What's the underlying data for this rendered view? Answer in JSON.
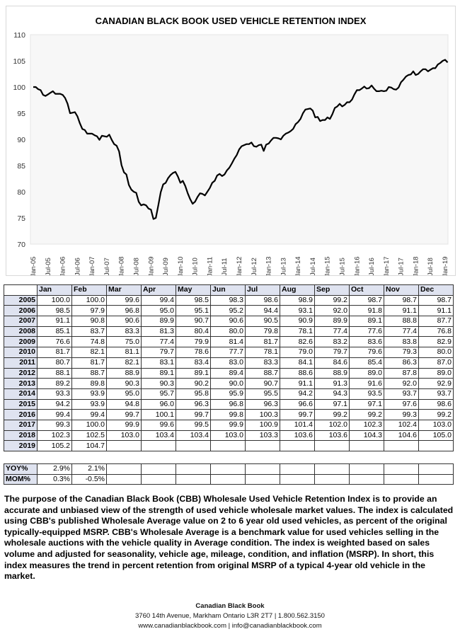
{
  "chart_data": {
    "type": "line",
    "title": "CANADIAN BLACK BOOK USED VEHICLE RETENTION INDEX",
    "xlabel": "",
    "ylabel": "",
    "ylim": [
      70,
      110
    ],
    "yticks": [
      70,
      75,
      80,
      85,
      90,
      95,
      100,
      105,
      110
    ],
    "xticks": [
      "Jan-05",
      "Jul-05",
      "Jan-06",
      "Jul-06",
      "Jan-07",
      "Jul-07",
      "Jan-08",
      "Jul-08",
      "Jan-09",
      "Jul-09",
      "Jan-10",
      "Jul-10",
      "Jan-11",
      "Jul-11",
      "Jan-12",
      "Jul-12",
      "Jan-13",
      "Jul-13",
      "Jan-14",
      "Jul-14",
      "Jan-15",
      "Jul-15",
      "Jan-16",
      "Jul-16",
      "Jan-17",
      "Jul-17",
      "Jan-18",
      "Jul-18",
      "Jan-19"
    ],
    "grid": false,
    "series": [
      {
        "name": "Used Vehicle Retention Index",
        "x_start": "Jan-05",
        "x_step": "month",
        "values": [
          100.0,
          100.0,
          99.6,
          99.4,
          98.5,
          98.3,
          98.6,
          98.9,
          99.2,
          98.7,
          98.7,
          98.7,
          98.5,
          97.9,
          96.8,
          95.0,
          95.1,
          95.2,
          94.4,
          93.1,
          92.0,
          91.8,
          91.1,
          91.1,
          91.1,
          90.8,
          90.6,
          89.9,
          90.7,
          90.6,
          90.5,
          90.9,
          89.9,
          89.1,
          88.8,
          87.7,
          85.1,
          83.7,
          83.3,
          81.3,
          80.4,
          80.0,
          79.8,
          78.1,
          77.4,
          77.6,
          77.4,
          76.8,
          76.6,
          74.8,
          75.0,
          77.4,
          79.9,
          81.4,
          81.7,
          82.6,
          83.2,
          83.6,
          83.8,
          82.9,
          81.7,
          82.1,
          81.1,
          79.7,
          78.6,
          77.7,
          78.1,
          79.0,
          79.7,
          79.6,
          79.3,
          80.0,
          80.7,
          81.7,
          82.1,
          83.1,
          83.4,
          83.0,
          83.3,
          84.1,
          84.6,
          85.4,
          86.3,
          87.0,
          88.1,
          88.7,
          88.9,
          89.1,
          89.1,
          89.4,
          88.7,
          88.6,
          88.9,
          89.0,
          87.8,
          89.0,
          89.2,
          89.8,
          90.3,
          90.3,
          90.2,
          90.0,
          90.7,
          91.1,
          91.3,
          91.6,
          92.0,
          92.9,
          93.3,
          93.9,
          95.0,
          95.7,
          95.8,
          95.9,
          95.5,
          94.2,
          94.3,
          93.5,
          93.7,
          93.7,
          94.2,
          93.9,
          94.8,
          96.0,
          96.3,
          96.8,
          96.3,
          96.6,
          97.1,
          97.1,
          97.6,
          98.6,
          99.4,
          99.4,
          99.7,
          100.1,
          99.7,
          99.8,
          100.3,
          99.7,
          99.2,
          99.2,
          99.3,
          99.2,
          99.3,
          100.0,
          99.9,
          99.6,
          99.5,
          99.9,
          100.9,
          101.4,
          102.0,
          102.3,
          102.4,
          103.0,
          102.3,
          102.5,
          103.0,
          103.4,
          103.4,
          103.0,
          103.3,
          103.6,
          103.6,
          104.3,
          104.6,
          105.0,
          105.2,
          104.7
        ]
      }
    ]
  },
  "table": {
    "months": [
      "Jan",
      "Feb",
      "Mar",
      "Apr",
      "May",
      "Jun",
      "Jul",
      "Aug",
      "Sep",
      "Oct",
      "Nov",
      "Dec"
    ],
    "rows": [
      {
        "year": "2005",
        "values": [
          "100.0",
          "100.0",
          "99.6",
          "99.4",
          "98.5",
          "98.3",
          "98.6",
          "98.9",
          "99.2",
          "98.7",
          "98.7",
          "98.7"
        ]
      },
      {
        "year": "2006",
        "values": [
          "98.5",
          "97.9",
          "96.8",
          "95.0",
          "95.1",
          "95.2",
          "94.4",
          "93.1",
          "92.0",
          "91.8",
          "91.1",
          "91.1"
        ]
      },
      {
        "year": "2007",
        "values": [
          "91.1",
          "90.8",
          "90.6",
          "89.9",
          "90.7",
          "90.6",
          "90.5",
          "90.9",
          "89.9",
          "89.1",
          "88.8",
          "87.7"
        ]
      },
      {
        "year": "2008",
        "values": [
          "85.1",
          "83.7",
          "83.3",
          "81.3",
          "80.4",
          "80.0",
          "79.8",
          "78.1",
          "77.4",
          "77.6",
          "77.4",
          "76.8"
        ]
      },
      {
        "year": "2009",
        "values": [
          "76.6",
          "74.8",
          "75.0",
          "77.4",
          "79.9",
          "81.4",
          "81.7",
          "82.6",
          "83.2",
          "83.6",
          "83.8",
          "82.9"
        ]
      },
      {
        "year": "2010",
        "values": [
          "81.7",
          "82.1",
          "81.1",
          "79.7",
          "78.6",
          "77.7",
          "78.1",
          "79.0",
          "79.7",
          "79.6",
          "79.3",
          "80.0"
        ]
      },
      {
        "year": "2011",
        "values": [
          "80.7",
          "81.7",
          "82.1",
          "83.1",
          "83.4",
          "83.0",
          "83.3",
          "84.1",
          "84.6",
          "85.4",
          "86.3",
          "87.0"
        ]
      },
      {
        "year": "2012",
        "values": [
          "88.1",
          "88.7",
          "88.9",
          "89.1",
          "89.1",
          "89.4",
          "88.7",
          "88.6",
          "88.9",
          "89.0",
          "87.8",
          "89.0"
        ]
      },
      {
        "year": "2013",
        "values": [
          "89.2",
          "89.8",
          "90.3",
          "90.3",
          "90.2",
          "90.0",
          "90.7",
          "91.1",
          "91.3",
          "91.6",
          "92.0",
          "92.9"
        ]
      },
      {
        "year": "2014",
        "values": [
          "93.3",
          "93.9",
          "95.0",
          "95.7",
          "95.8",
          "95.9",
          "95.5",
          "94.2",
          "94.3",
          "93.5",
          "93.7",
          "93.7"
        ]
      },
      {
        "year": "2015",
        "values": [
          "94.2",
          "93.9",
          "94.8",
          "96.0",
          "96.3",
          "96.8",
          "96.3",
          "96.6",
          "97.1",
          "97.1",
          "97.6",
          "98.6"
        ]
      },
      {
        "year": "2016",
        "values": [
          "99.4",
          "99.4",
          "99.7",
          "100.1",
          "99.7",
          "99.8",
          "100.3",
          "99.7",
          "99.2",
          "99.2",
          "99.3",
          "99.2"
        ]
      },
      {
        "year": "2017",
        "values": [
          "99.3",
          "100.0",
          "99.9",
          "99.6",
          "99.5",
          "99.9",
          "100.9",
          "101.4",
          "102.0",
          "102.3",
          "102.4",
          "103.0"
        ]
      },
      {
        "year": "2018",
        "values": [
          "102.3",
          "102.5",
          "103.0",
          "103.4",
          "103.4",
          "103.0",
          "103.3",
          "103.6",
          "103.6",
          "104.3",
          "104.6",
          "105.0"
        ]
      },
      {
        "year": "2019",
        "values": [
          "105.2",
          "104.7",
          "",
          "",
          "",
          "",
          "",
          "",
          "",
          "",
          "",
          ""
        ]
      }
    ],
    "summary": [
      {
        "label": "YOY%",
        "values": [
          "2.9%",
          "2.1%",
          "",
          "",
          "",
          "",
          "",
          "",
          "",
          "",
          "",
          ""
        ]
      },
      {
        "label": "MOM%",
        "values": [
          "0.3%",
          "-0.5%",
          "",
          "",
          "",
          "",
          "",
          "",
          "",
          "",
          "",
          ""
        ]
      }
    ]
  },
  "description": "The purpose of the Canadian Black Book (CBB) Wholesale Used Vehicle Retention Index is to provide an accurate and unbiased view of the strength of used vehicle wholesale market values. The index is calculated using CBB's published Wholesale Average value on 2 to 6 year old used vehicles, as percent of the original typically-equipped MSRP. CBB's Wholesale Average is a benchmark value for used vehicles selling in the wholesale auctions with the vehicle quality in Average condition. The index is weighted based on sales volume and adjusted for seasonality, vehicle age, mileage, condition, and inflation (MSRP). In short, this index measures the trend in percent retention from original MSRP of a typical 4-year old vehicle in the market.",
  "footer": {
    "company": "Canadian Black Book",
    "address": "3760 14th Avenue, Markham Ontario L3R 2T7 | 1.800.562.3150",
    "contact": "www.canadianblackbook.com | info@canadianblackbook.com"
  },
  "colors": {
    "line": "#000000",
    "header_bg": "#dfe3f0",
    "plot_bg": "#f7f7f7"
  }
}
